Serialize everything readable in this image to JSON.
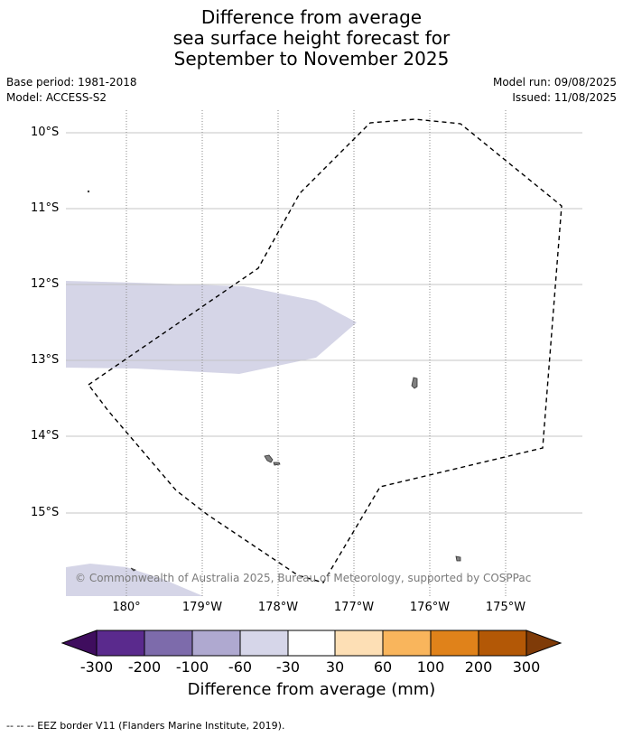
{
  "title": {
    "line1": "Difference from average",
    "line2": "sea surface height forecast for",
    "line3": "September to November 2025"
  },
  "meta": {
    "base_period": "Base period: 1981-2018",
    "model": "Model: ACCESS-S2",
    "model_run": "Model run: 09/08/2025",
    "issued": "Issued: 11/08/2025"
  },
  "map": {
    "lat_labels": [
      "10°S",
      "11°S",
      "12°S",
      "13°S",
      "14°S",
      "15°S"
    ],
    "lon_labels": [
      "180°",
      "179°W",
      "178°W",
      "177°W",
      "176°W",
      "175°W"
    ],
    "copyright": "© Commonwealth of Australia 2025, Bureau of Meteorology, supported by COSPPac",
    "anomaly_fill_color": "#d5d5e7",
    "eez_border_style": "dashed black"
  },
  "colorbar": {
    "ticks": [
      "-300",
      "-200",
      "-100",
      "-60",
      "-30",
      "30",
      "60",
      "100",
      "200",
      "300"
    ],
    "colors": [
      "#3f0d5e",
      "#5a2a8d",
      "#7d6bab",
      "#afa9d0",
      "#d6d6e9",
      "#ffffff",
      "#fddfb5",
      "#f9b55c",
      "#e0821a",
      "#b35806",
      "#7f3b08"
    ],
    "label": "Difference from average (mm)"
  },
  "footnote": "--  --  -- EEZ border V11 (Flanders Marine Institute, 2019)."
}
